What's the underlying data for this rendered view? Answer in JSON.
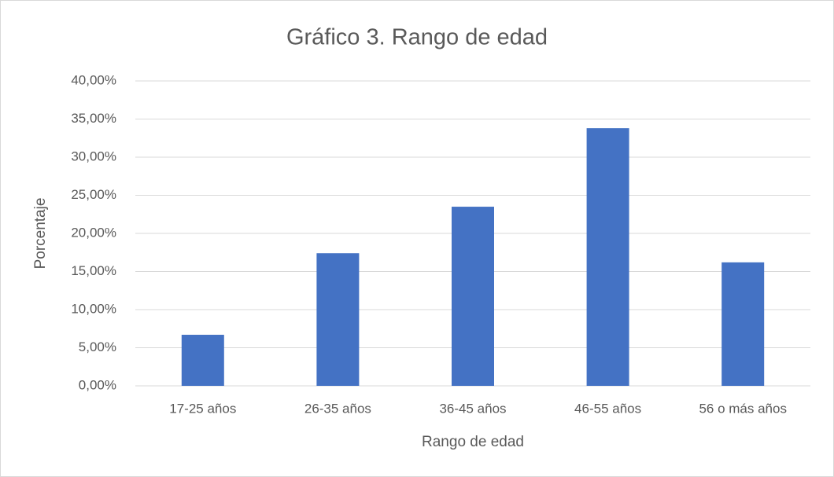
{
  "chart_data": {
    "type": "bar",
    "title": "Gráfico 3. Rango de edad",
    "x_label": "Rango de edad",
    "y_label": "Porcentaje",
    "categories": [
      "17-25 años",
      "26-35 años",
      "36-45 años",
      "46-55 años",
      "56 o más años"
    ],
    "values": [
      6.7,
      17.4,
      23.5,
      33.8,
      16.2
    ],
    "color": "#4472c4",
    "ylim": [
      0,
      40
    ],
    "yticks": [
      {
        "value": 0,
        "label": "0,00%"
      },
      {
        "value": 5,
        "label": "5,00%"
      },
      {
        "value": 10,
        "label": "10,00%"
      },
      {
        "value": 15,
        "label": "15,00%"
      },
      {
        "value": 20,
        "label": "20,00%"
      },
      {
        "value": 25,
        "label": "25,00%"
      },
      {
        "value": 30,
        "label": "30,00%"
      },
      {
        "value": 35,
        "label": "35,00%"
      },
      {
        "value": 40,
        "label": "40,00%"
      }
    ],
    "grid": true
  }
}
